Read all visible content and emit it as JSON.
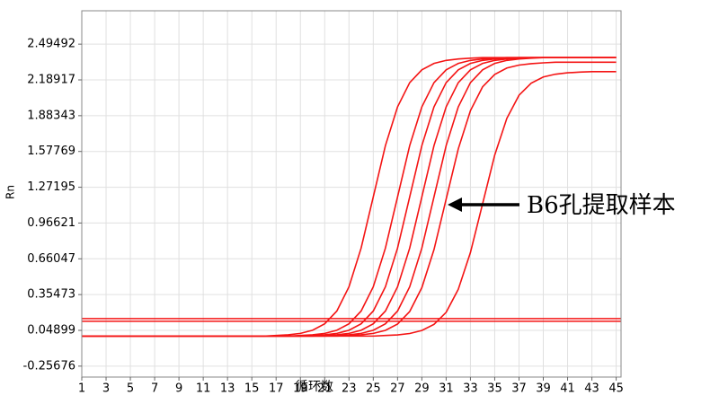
{
  "chart_data": {
    "type": "line",
    "y_label": "Rn",
    "x_label": "循环数",
    "annotation": "B6孔提取样本",
    "line_color": "#f41414",
    "grid": true,
    "xlim": [
      1,
      45.4
    ],
    "ylim": [
      -0.35,
      2.78
    ],
    "xticks": [
      1,
      3,
      5,
      7,
      9,
      11,
      13,
      15,
      17,
      19,
      21,
      23,
      25,
      27,
      29,
      31,
      33,
      35,
      37,
      39,
      41,
      43,
      45
    ],
    "yticks": [
      -0.25676,
      0.04899,
      0.35473,
      0.66047,
      0.96621,
      1.27195,
      1.57769,
      1.88343,
      2.18917,
      2.49492
    ],
    "thresholds": [
      0.15,
      0.127
    ],
    "x": [
      1,
      2,
      3,
      4,
      5,
      6,
      7,
      8,
      9,
      10,
      11,
      12,
      13,
      14,
      15,
      16,
      17,
      18,
      19,
      20,
      21,
      22,
      23,
      24,
      25,
      26,
      27,
      28,
      29,
      30,
      31,
      32,
      33,
      34,
      35,
      36,
      37,
      38,
      39,
      40,
      41,
      42,
      43,
      44,
      45
    ],
    "series": [
      {
        "values": [
          0,
          0,
          0,
          0,
          0,
          0,
          0,
          0,
          0,
          0,
          0,
          0,
          0,
          0,
          0,
          0,
          0.005,
          0.011,
          0.023,
          0.05,
          0.105,
          0.214,
          0.421,
          0.752,
          1.19,
          1.628,
          1.959,
          2.166,
          2.275,
          2.33,
          2.356,
          2.368,
          2.375,
          2.38,
          2.38,
          2.38,
          2.38,
          2.38,
          2.38,
          2.38,
          2.38,
          2.38,
          2.38,
          2.38,
          2.38
        ]
      },
      {
        "values": [
          0,
          0,
          0,
          0,
          0,
          0,
          0,
          0,
          0,
          0,
          0,
          0,
          0,
          0,
          0,
          0,
          0,
          0,
          0.005,
          0.011,
          0.023,
          0.05,
          0.105,
          0.214,
          0.421,
          0.752,
          1.19,
          1.628,
          1.959,
          2.166,
          2.275,
          2.33,
          2.356,
          2.368,
          2.375,
          2.38,
          2.38,
          2.38,
          2.38,
          2.38,
          2.38,
          2.38,
          2.38,
          2.38,
          2.38
        ]
      },
      {
        "values": [
          0,
          0,
          0,
          0,
          0,
          0,
          0,
          0,
          0,
          0,
          0,
          0,
          0,
          0,
          0,
          0,
          0,
          0,
          0,
          0.005,
          0.011,
          0.023,
          0.05,
          0.105,
          0.214,
          0.421,
          0.752,
          1.19,
          1.628,
          1.959,
          2.166,
          2.275,
          2.33,
          2.356,
          2.368,
          2.375,
          2.38,
          2.38,
          2.38,
          2.38,
          2.38,
          2.38,
          2.38,
          2.38,
          2.38
        ]
      },
      {
        "values": [
          0,
          0,
          0,
          0,
          0,
          0,
          0,
          0,
          0,
          0,
          0,
          0,
          0,
          0,
          0,
          0,
          0,
          0,
          0,
          0,
          0.005,
          0.011,
          0.023,
          0.05,
          0.105,
          0.214,
          0.421,
          0.752,
          1.19,
          1.628,
          1.959,
          2.166,
          2.275,
          2.33,
          2.356,
          2.368,
          2.375,
          2.38,
          2.38,
          2.38,
          2.38,
          2.38,
          2.38,
          2.38,
          2.38
        ]
      },
      {
        "values": [
          0,
          0,
          0,
          0,
          0,
          0,
          0,
          0,
          0,
          0,
          0,
          0,
          0,
          0,
          0,
          0,
          0,
          0,
          0,
          0,
          0,
          0.005,
          0.011,
          0.023,
          0.05,
          0.105,
          0.214,
          0.421,
          0.752,
          1.19,
          1.628,
          1.959,
          2.166,
          2.275,
          2.33,
          2.356,
          2.368,
          2.375,
          2.38,
          2.38,
          2.38,
          2.38,
          2.38,
          2.38,
          2.38
        ]
      },
      {
        "values": [
          0,
          0,
          0,
          0,
          0,
          0,
          0,
          0,
          0,
          0,
          0,
          0,
          0,
          0,
          0,
          0,
          0,
          0,
          0,
          0,
          0,
          0,
          0.005,
          0.011,
          0.023,
          0.049,
          0.103,
          0.21,
          0.414,
          0.739,
          1.17,
          1.6,
          1.926,
          2.13,
          2.236,
          2.291,
          2.316,
          2.328,
          2.335,
          2.34,
          2.34,
          2.34,
          2.34,
          2.34,
          2.34
        ]
      },
      {
        "values": [
          0,
          0,
          0,
          0,
          0,
          0,
          0,
          0,
          0,
          0,
          0,
          0,
          0,
          0,
          0,
          0,
          0,
          0,
          0,
          0,
          0,
          0,
          0,
          0,
          0,
          0.005,
          0.01,
          0.022,
          0.048,
          0.1,
          0.203,
          0.4,
          0.714,
          1.13,
          1.547,
          1.861,
          2.058,
          2.161,
          2.214,
          2.238,
          2.25,
          2.256,
          2.26,
          2.26,
          2.26
        ]
      }
    ]
  }
}
